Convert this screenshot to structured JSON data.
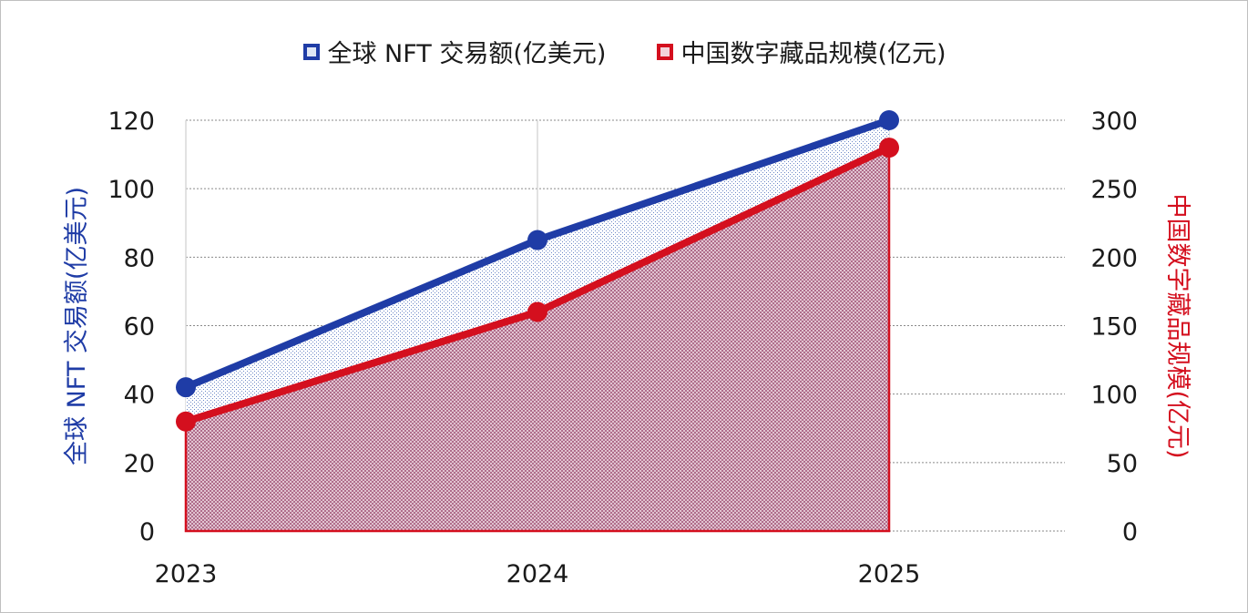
{
  "chart_data": {
    "type": "area",
    "categories": [
      "2023",
      "2024",
      "2025"
    ],
    "series": [
      {
        "name": "全球 NFT 交易额(亿美元)",
        "values": [
          42,
          85,
          120
        ],
        "axis": "left",
        "color": "#1f3ca6"
      },
      {
        "name": "中国数字藏品规模(亿元)",
        "values": [
          80,
          160,
          280
        ],
        "axis": "right",
        "color": "#d40f1e"
      }
    ],
    "y_left": {
      "label": "全球 NFT 交易额(亿美元)",
      "ylim": [
        0,
        120
      ],
      "ticks": [
        "0",
        "20",
        "40",
        "60",
        "80",
        "100",
        "120"
      ]
    },
    "y_right": {
      "label": "中国数字藏品规模(亿元)",
      "ylim": [
        0,
        300
      ],
      "ticks": [
        "0",
        "50",
        "100",
        "150",
        "200",
        "250",
        "300"
      ]
    },
    "grid": true,
    "legend_position": "top"
  }
}
